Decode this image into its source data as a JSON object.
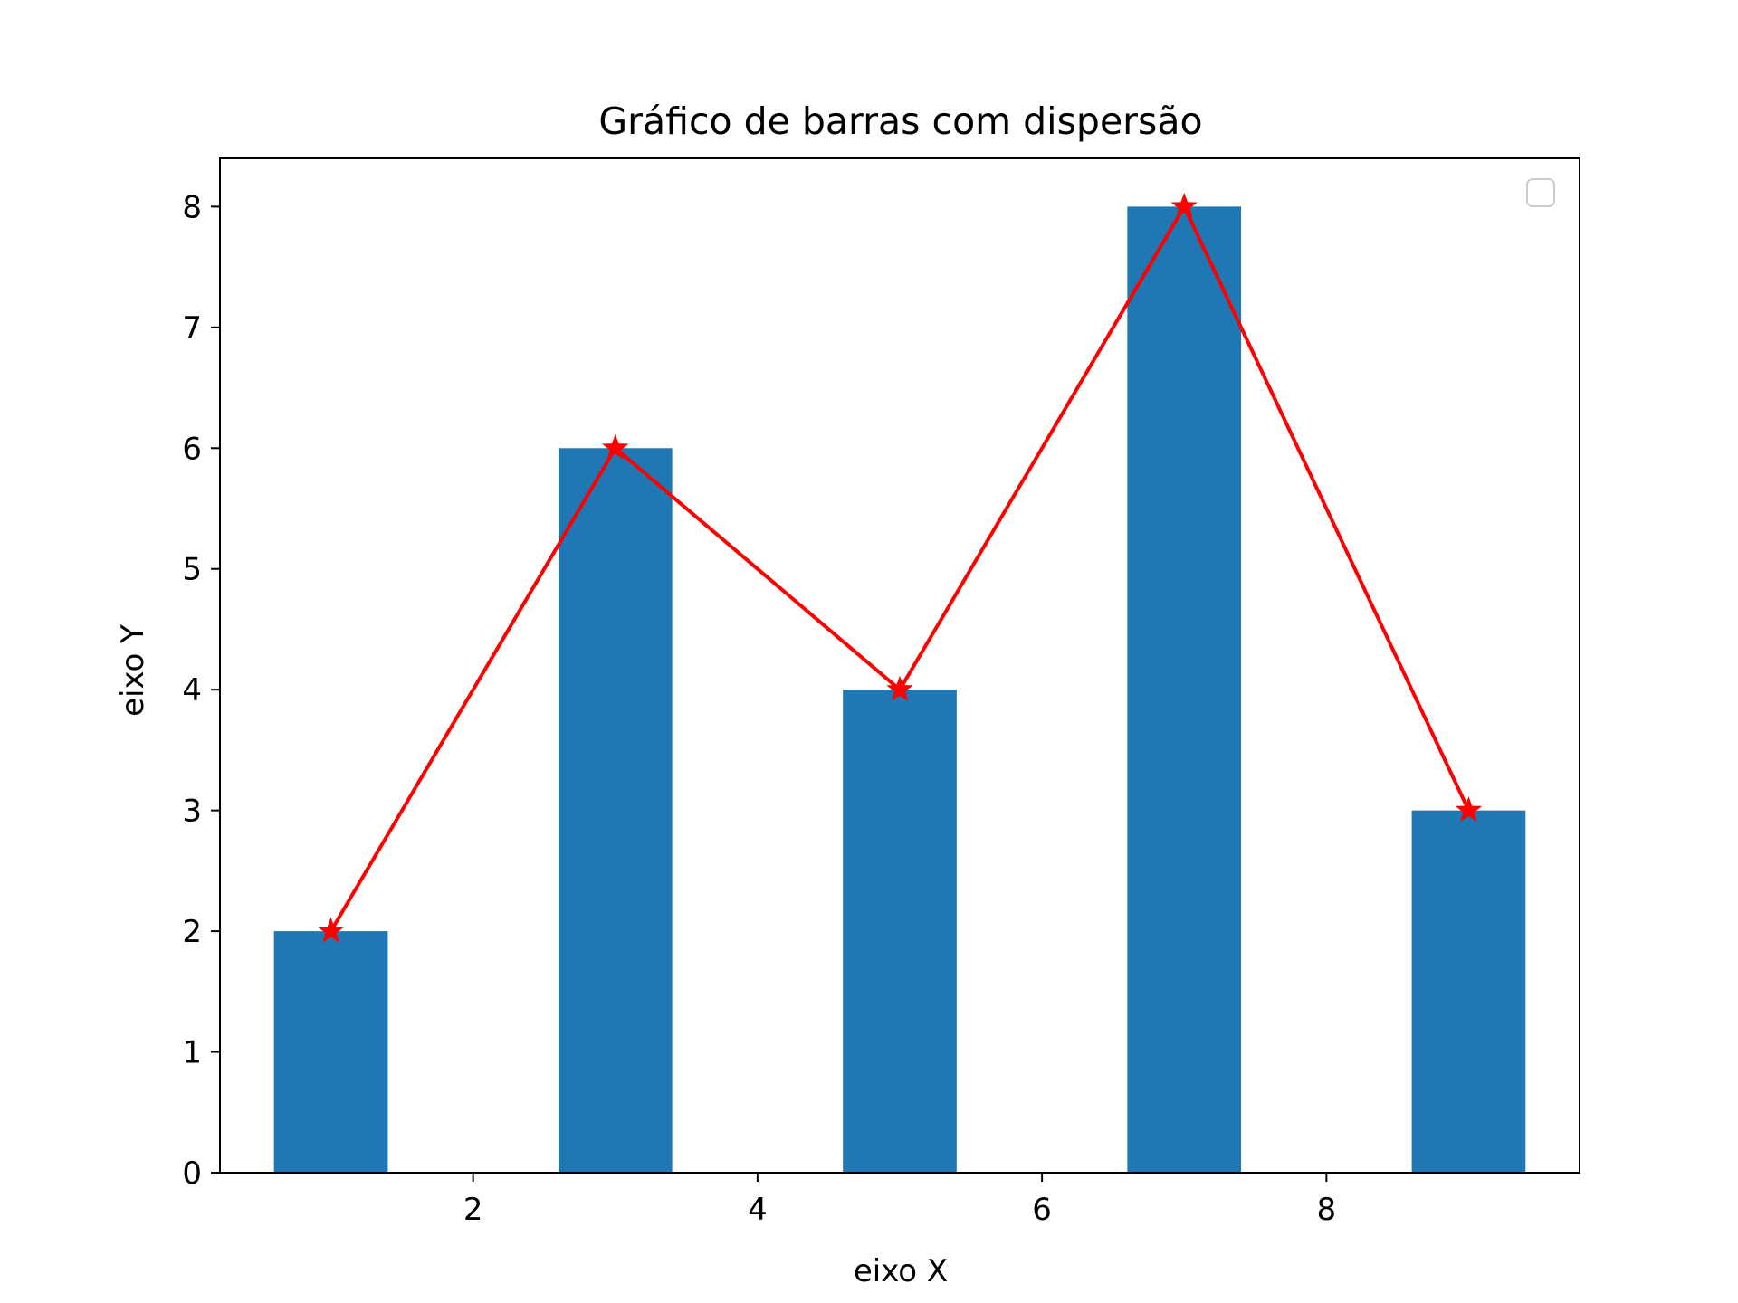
{
  "chart_data": {
    "type": "bar",
    "title": "Gráfico de barras com dispersão",
    "xlabel": "eixo X",
    "ylabel": "eixo Y",
    "xlim": [
      0.22,
      9.78
    ],
    "ylim": [
      0,
      8.4
    ],
    "xticks": [
      2,
      4,
      6,
      8
    ],
    "yticks": [
      0,
      1,
      2,
      3,
      4,
      5,
      6,
      7,
      8
    ],
    "grid": false,
    "legend": "top-right (empty)",
    "bar_width": 0.8,
    "series": [
      {
        "type": "bar",
        "color": "#1f77b4",
        "x": [
          1,
          3,
          5,
          7,
          9
        ],
        "values": [
          2,
          6,
          4,
          8,
          3
        ]
      },
      {
        "type": "line",
        "color": "#ff0000",
        "marker": "star",
        "x": [
          1,
          3,
          5,
          7,
          9
        ],
        "values": [
          2,
          6,
          4,
          8,
          3
        ]
      }
    ]
  }
}
